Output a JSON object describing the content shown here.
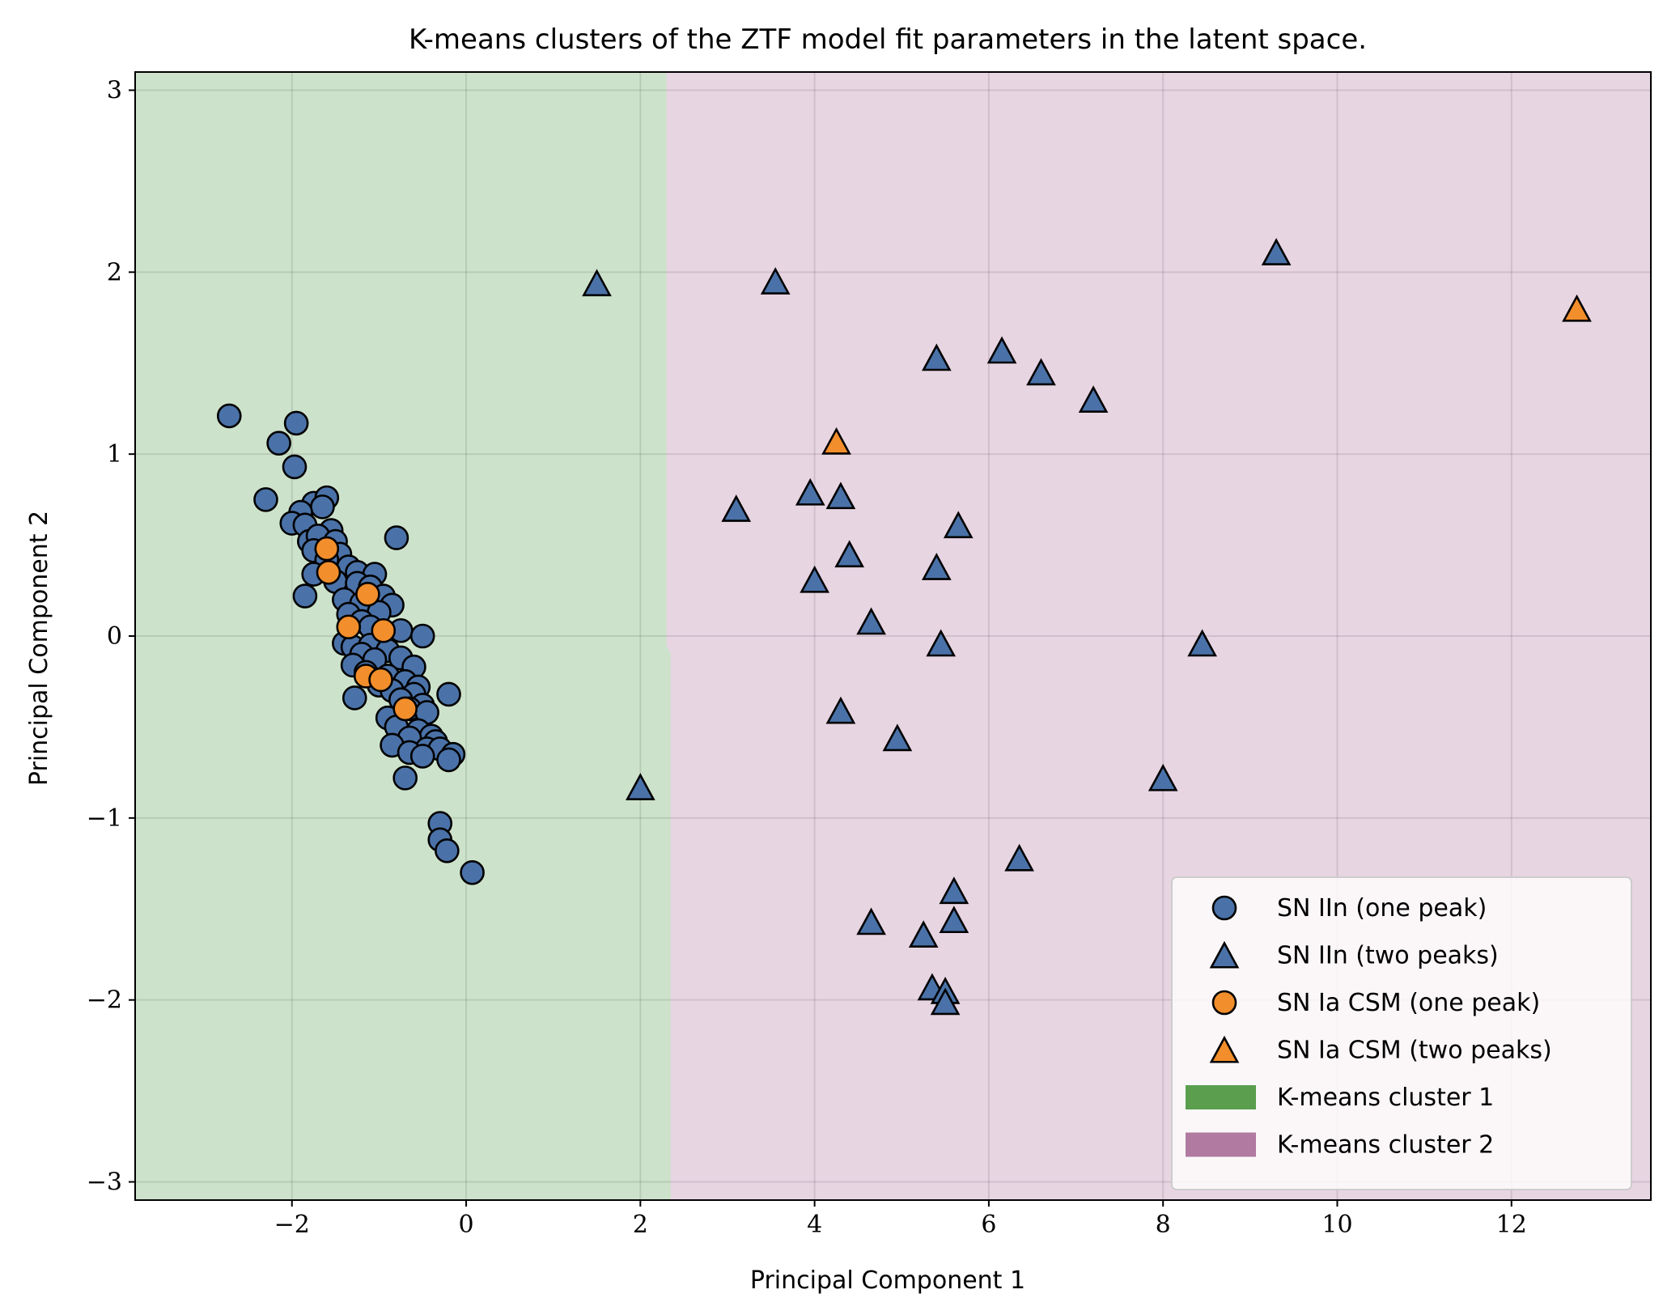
{
  "chart_data": {
    "type": "scatter",
    "title": "K-means clusters of the ZTF model fit parameters in the latent space.",
    "xlabel": "Principal Component 1",
    "ylabel": "Principal Component 2",
    "xlim": [
      -3.8,
      13.6
    ],
    "ylim": [
      -3.1,
      3.1
    ],
    "xticks": [
      -2,
      0,
      2,
      4,
      6,
      8,
      10,
      12
    ],
    "yticks": [
      -3,
      -2,
      -1,
      0,
      1,
      2,
      3
    ],
    "xtick_labels": [
      "−2",
      "0",
      "2",
      "4",
      "6",
      "8",
      "10",
      "12"
    ],
    "ytick_labels": [
      "−3",
      "−2",
      "−1",
      "0",
      "1",
      "2",
      "3"
    ],
    "grid": true,
    "legend_position": "bottom-right",
    "colors": {
      "blue": "#4a72a8",
      "orange": "#f28e2b",
      "cluster1": "#5a9e4e",
      "cluster2": "#b07aa1",
      "region1": "#cde2cb",
      "region2": "#e8d5e2"
    },
    "regions": [
      {
        "name": "K-means cluster 1",
        "boundary": [
          [
            2.3,
            3.1
          ],
          [
            2.3,
            -0.05
          ],
          [
            2.35,
            -0.1
          ],
          [
            2.35,
            -3.1
          ]
        ]
      },
      {
        "name": "K-means cluster 2"
      }
    ],
    "series": [
      {
        "name": "SN IIn (one peak)",
        "marker": "circle",
        "color": "#4a72a8",
        "points": [
          [
            -2.72,
            1.21
          ],
          [
            -1.95,
            1.17
          ],
          [
            -2.15,
            1.06
          ],
          [
            -1.97,
            0.93
          ],
          [
            -2.3,
            0.75
          ],
          [
            -1.75,
            0.73
          ],
          [
            -1.6,
            0.76
          ],
          [
            -1.65,
            0.71
          ],
          [
            -1.9,
            0.68
          ],
          [
            -2.0,
            0.62
          ],
          [
            -1.85,
            0.61
          ],
          [
            -1.55,
            0.58
          ],
          [
            -1.8,
            0.52
          ],
          [
            -1.7,
            0.55
          ],
          [
            -1.5,
            0.52
          ],
          [
            -1.75,
            0.47
          ],
          [
            -1.45,
            0.45
          ],
          [
            -1.6,
            0.42
          ],
          [
            -0.8,
            0.54
          ],
          [
            -1.35,
            0.38
          ],
          [
            -1.25,
            0.35
          ],
          [
            -1.05,
            0.34
          ],
          [
            -1.75,
            0.34
          ],
          [
            -1.5,
            0.3
          ],
          [
            -1.25,
            0.29
          ],
          [
            -1.1,
            0.27
          ],
          [
            -0.95,
            0.22
          ],
          [
            -1.85,
            0.22
          ],
          [
            -1.4,
            0.2
          ],
          [
            -1.2,
            0.18
          ],
          [
            -0.85,
            0.17
          ],
          [
            -1.0,
            0.13
          ],
          [
            -1.35,
            0.12
          ],
          [
            -1.2,
            0.08
          ],
          [
            -0.75,
            0.03
          ],
          [
            -1.1,
            0.05
          ],
          [
            -0.5,
            0.0
          ],
          [
            -1.4,
            -0.04
          ],
          [
            -1.3,
            -0.06
          ],
          [
            -1.1,
            -0.05
          ],
          [
            -0.9,
            -0.08
          ],
          [
            -1.2,
            -0.1
          ],
          [
            -1.05,
            -0.13
          ],
          [
            -0.75,
            -0.12
          ],
          [
            -1.3,
            -0.16
          ],
          [
            -0.6,
            -0.17
          ],
          [
            -1.15,
            -0.2
          ],
          [
            -0.9,
            -0.22
          ],
          [
            -1.0,
            -0.27
          ],
          [
            -0.7,
            -0.25
          ],
          [
            -0.55,
            -0.28
          ],
          [
            -0.85,
            -0.3
          ],
          [
            -0.6,
            -0.32
          ],
          [
            -0.2,
            -0.32
          ],
          [
            -1.28,
            -0.34
          ],
          [
            -0.75,
            -0.35
          ],
          [
            -0.5,
            -0.38
          ],
          [
            -0.65,
            -0.4
          ],
          [
            -0.45,
            -0.42
          ],
          [
            -0.9,
            -0.45
          ],
          [
            -0.8,
            -0.5
          ],
          [
            -0.55,
            -0.52
          ],
          [
            -0.4,
            -0.55
          ],
          [
            -0.65,
            -0.56
          ],
          [
            -0.35,
            -0.58
          ],
          [
            -0.85,
            -0.6
          ],
          [
            -0.45,
            -0.62
          ],
          [
            -0.3,
            -0.62
          ],
          [
            -0.65,
            -0.64
          ],
          [
            -0.15,
            -0.65
          ],
          [
            -0.5,
            -0.66
          ],
          [
            -0.2,
            -0.68
          ],
          [
            -0.7,
            -0.78
          ],
          [
            -0.3,
            -1.03
          ],
          [
            -0.3,
            -1.12
          ],
          [
            -0.22,
            -1.18
          ],
          [
            0.07,
            -1.3
          ]
        ]
      },
      {
        "name": "SN IIn (two peaks)",
        "marker": "triangle",
        "color": "#4a72a8",
        "points": [
          [
            1.5,
            1.93
          ],
          [
            3.55,
            1.94
          ],
          [
            9.3,
            2.1
          ],
          [
            5.4,
            1.52
          ],
          [
            6.15,
            1.56
          ],
          [
            6.6,
            1.44
          ],
          [
            7.2,
            1.29
          ],
          [
            3.1,
            0.69
          ],
          [
            3.95,
            0.78
          ],
          [
            4.3,
            0.76
          ],
          [
            5.65,
            0.6
          ],
          [
            4.4,
            0.44
          ],
          [
            5.4,
            0.37
          ],
          [
            4.0,
            0.3
          ],
          [
            4.65,
            0.07
          ],
          [
            5.45,
            -0.05
          ],
          [
            8.45,
            -0.05
          ],
          [
            4.3,
            -0.42
          ],
          [
            4.95,
            -0.57
          ],
          [
            2.0,
            -0.84
          ],
          [
            8.0,
            -0.79
          ],
          [
            6.35,
            -1.23
          ],
          [
            5.6,
            -1.41
          ],
          [
            4.65,
            -1.58
          ],
          [
            5.6,
            -1.57
          ],
          [
            5.25,
            -1.65
          ],
          [
            5.35,
            -1.94
          ],
          [
            5.5,
            -1.96
          ],
          [
            5.5,
            -2.02
          ]
        ]
      },
      {
        "name": "SN Ia CSM (one peak)",
        "marker": "circle",
        "color": "#f28e2b",
        "points": [
          [
            -1.6,
            0.48
          ],
          [
            -1.58,
            0.35
          ],
          [
            -1.13,
            0.23
          ],
          [
            -1.35,
            0.05
          ],
          [
            -0.95,
            0.03
          ],
          [
            -1.15,
            -0.22
          ],
          [
            -0.98,
            -0.24
          ],
          [
            -0.7,
            -0.4
          ]
        ]
      },
      {
        "name": "SN Ia CSM (two peaks)",
        "marker": "triangle",
        "color": "#f28e2b",
        "points": [
          [
            4.25,
            1.06
          ],
          [
            12.75,
            1.79
          ]
        ]
      }
    ],
    "legend": [
      {
        "label": "SN IIn (one peak)",
        "kind": "circle",
        "color": "#4a72a8"
      },
      {
        "label": "SN IIn (two peaks)",
        "kind": "triangle",
        "color": "#4a72a8"
      },
      {
        "label": "SN Ia CSM (one peak)",
        "kind": "circle",
        "color": "#f28e2b"
      },
      {
        "label": "SN Ia CSM (two peaks)",
        "kind": "triangle",
        "color": "#f28e2b"
      },
      {
        "label": "K-means cluster 1",
        "kind": "patch",
        "color": "#5a9e4e"
      },
      {
        "label": "K-means cluster 2",
        "kind": "patch",
        "color": "#b07aa1"
      }
    ]
  }
}
